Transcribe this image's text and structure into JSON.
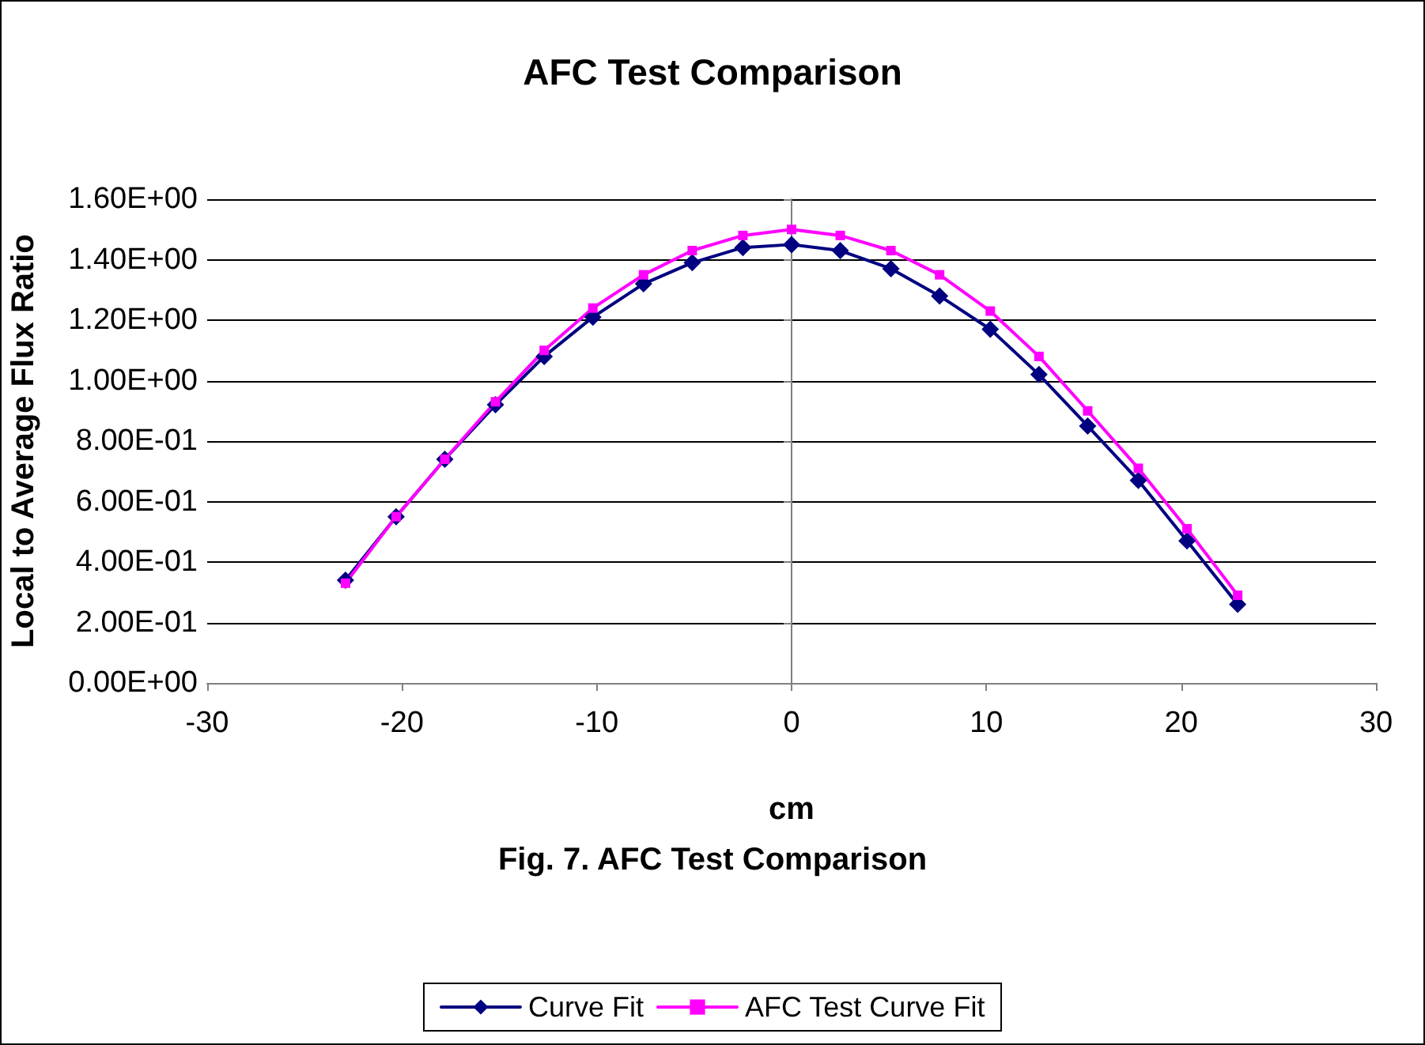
{
  "chart_data": {
    "type": "line",
    "title": "AFC Test Comparison",
    "xlabel": "cm",
    "ylabel": "Local to Average Flux Ratio",
    "annotations": [
      "Fig. 7. AFC Test Comparison"
    ],
    "x": [
      -22.9,
      -20.3,
      -17.8,
      -15.2,
      -12.7,
      -10.2,
      -7.6,
      -5.1,
      -2.5,
      0,
      2.5,
      5.1,
      7.6,
      10.2,
      12.7,
      15.2,
      17.8,
      20.3,
      22.9
    ],
    "series": [
      {
        "name": "Curve Fit",
        "color": "#000080",
        "marker": "diamond",
        "values": [
          0.34,
          0.55,
          0.74,
          0.92,
          1.08,
          1.21,
          1.32,
          1.39,
          1.44,
          1.45,
          1.43,
          1.37,
          1.28,
          1.17,
          1.02,
          0.85,
          0.67,
          0.47,
          0.26
        ]
      },
      {
        "name": "AFC Test Curve Fit",
        "color": "#ff00ff",
        "marker": "square",
        "values": [
          0.33,
          0.55,
          0.74,
          0.93,
          1.1,
          1.24,
          1.35,
          1.43,
          1.48,
          1.5,
          1.48,
          1.43,
          1.35,
          1.23,
          1.08,
          0.9,
          0.71,
          0.51,
          0.29
        ]
      }
    ],
    "xlim": [
      -30,
      30
    ],
    "xticks": [
      -30,
      -20,
      -10,
      0,
      10,
      20,
      30
    ],
    "ylim": [
      0,
      1.6
    ],
    "yticks": [
      {
        "value": 0,
        "label": "0.00E+00"
      },
      {
        "value": 0.2,
        "label": "2.00E-01"
      },
      {
        "value": 0.4,
        "label": "4.00E-01"
      },
      {
        "value": 0.6,
        "label": "6.00E-01"
      },
      {
        "value": 0.8,
        "label": "8.00E-01"
      },
      {
        "value": 1.0,
        "label": "1.00E+00"
      },
      {
        "value": 1.2,
        "label": "1.20E+00"
      },
      {
        "value": 1.4,
        "label": "1.40E+00"
      },
      {
        "value": 1.6,
        "label": "1.60E+00"
      }
    ],
    "grid": "y",
    "legend": "bottom",
    "line_style": "solid"
  }
}
